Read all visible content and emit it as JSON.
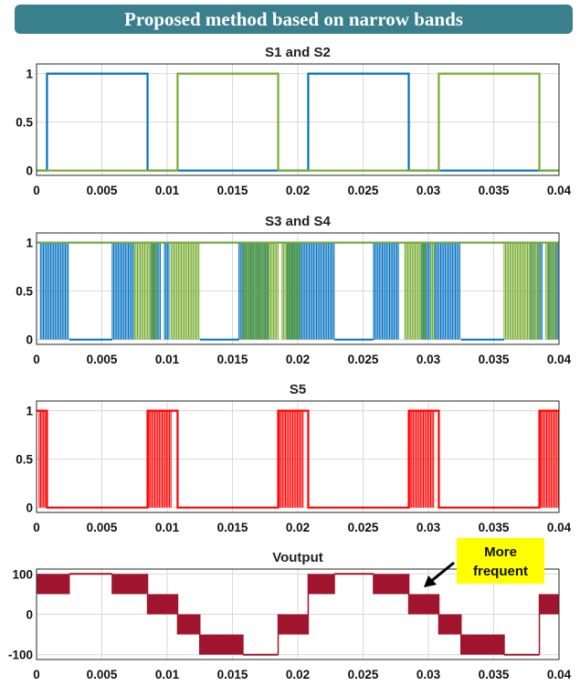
{
  "banner": {
    "title": "Proposed method based on narrow bands"
  },
  "annotation": {
    "line1": "More",
    "line2": "frequent",
    "box_color": "#ffff00",
    "arrow_color": "#000000"
  },
  "chart_data": [
    {
      "type": "line",
      "title": "S1 and S2",
      "xlim": [
        0,
        0.04
      ],
      "ylim": [
        -0.05,
        1.1
      ],
      "xticks": [
        "0",
        "0.005",
        "0.01",
        "0.015",
        "0.02",
        "0.025",
        "0.03",
        "0.035",
        "0.04"
      ],
      "yticks": [
        "0",
        "0.5",
        "1"
      ],
      "grid": true,
      "series": [
        {
          "color": "#0070c0",
          "x": [
            0,
            0.0008,
            0.0008,
            0.0085,
            0.0085,
            0.0208,
            0.0208,
            0.0285,
            0.0285,
            0.04
          ],
          "y": [
            0,
            0,
            1,
            1,
            0,
            0,
            1,
            1,
            0,
            0
          ]
        },
        {
          "color": "#77ac30",
          "x": [
            0,
            0.0108,
            0.0108,
            0.0185,
            0.0185,
            0.0308,
            0.0308,
            0.0385,
            0.0385,
            0.04
          ],
          "y": [
            0,
            0,
            1,
            1,
            0,
            0,
            1,
            1,
            0,
            0
          ]
        }
      ]
    },
    {
      "type": "line",
      "title": "S3 and S4",
      "xlim": [
        0,
        0.04
      ],
      "ylim": [
        -0.05,
        1.1
      ],
      "xticks": [
        "0",
        "0.005",
        "0.01",
        "0.015",
        "0.02",
        "0.025",
        "0.03",
        "0.035",
        "0.04"
      ],
      "yticks": [
        "0",
        "0.5",
        "1"
      ],
      "grid": true,
      "series": [
        {
          "color": "#0070c0",
          "x": [
            0,
            0.0008,
            0.0008,
            0.0085,
            0.0085,
            0.0208,
            0.0208,
            0.0285,
            0.0285,
            0.04
          ],
          "y": [
            1,
            1,
            1,
            1,
            1,
            1,
            1,
            1,
            1,
            1
          ],
          "switching_bands": [
            [
              0.0003,
              0.0025
            ],
            [
              0.0058,
              0.0075
            ],
            [
              0.0088,
              0.0095
            ],
            [
              0.0098,
              0.0102
            ],
            [
              0.0155,
              0.0178
            ],
            [
              0.0192,
              0.0228
            ],
            [
              0.0258,
              0.0278
            ],
            [
              0.0295,
              0.0302
            ],
            [
              0.0305,
              0.0325
            ],
            [
              0.0378,
              0.0388
            ],
            [
              0.0392,
              0.04
            ]
          ]
        },
        {
          "color": "#77ac30",
          "x": [
            0,
            0.04
          ],
          "y": [
            1,
            1
          ],
          "switching_bands": [
            [
              0.0075,
              0.0092
            ],
            [
              0.0103,
              0.0125
            ],
            [
              0.0158,
              0.0185
            ],
            [
              0.0188,
              0.0202
            ],
            [
              0.0282,
              0.0298
            ],
            [
              0.0302,
              0.0305
            ],
            [
              0.0358,
              0.0385
            ],
            [
              0.039,
              0.0398
            ]
          ]
        }
      ]
    },
    {
      "type": "line",
      "title": "S5",
      "xlim": [
        0,
        0.04
      ],
      "ylim": [
        -0.05,
        1.1
      ],
      "xticks": [
        "0",
        "0.005",
        "0.01",
        "0.015",
        "0.02",
        "0.025",
        "0.03",
        "0.035",
        "0.04"
      ],
      "yticks": [
        "0",
        "0.5",
        "1"
      ],
      "grid": true,
      "series": [
        {
          "color": "#ff0000",
          "x": [
            0,
            0.0008,
            0.0008,
            0.0085,
            0.0085,
            0.0108,
            0.0108,
            0.0185,
            0.0185,
            0.0208,
            0.0208,
            0.0285,
            0.0285,
            0.0308,
            0.0308,
            0.0385,
            0.0385,
            0.04
          ],
          "y": [
            1,
            1,
            0,
            0,
            1,
            1,
            0,
            0,
            1,
            1,
            0,
            0,
            1,
            1,
            0,
            0,
            1,
            1
          ],
          "switching_bands": [
            [
              0.0002,
              0.0008
            ],
            [
              0.0085,
              0.0103
            ],
            [
              0.0185,
              0.0205
            ],
            [
              0.0285,
              0.0305
            ],
            [
              0.0385,
              0.04
            ]
          ]
        }
      ]
    },
    {
      "type": "line",
      "title": "Voutput",
      "xlim": [
        0,
        0.04
      ],
      "ylim": [
        -112,
        112
      ],
      "xticks": [
        "0",
        "0.005",
        "0.01",
        "0.015",
        "0.02",
        "0.025",
        "0.03",
        "0.035",
        "0.04"
      ],
      "yticks": [
        "-100",
        "0",
        "100"
      ],
      "grid": true,
      "series": [
        {
          "color": "#a0152d",
          "steps": [
            [
              0,
              0.0002,
              50,
              100
            ],
            [
              0.0002,
              0.0008,
              50,
              100
            ],
            [
              0.0008,
              0.0025,
              50,
              100
            ],
            [
              0.0025,
              0.0058,
              100,
              100
            ],
            [
              0.0058,
              0.0085,
              50,
              100
            ],
            [
              0.0085,
              0.0108,
              0,
              50
            ],
            [
              0.0108,
              0.0125,
              -50,
              0
            ],
            [
              0.0125,
              0.0158,
              -100,
              -50
            ],
            [
              0.0158,
              0.0185,
              -100,
              -100
            ],
            [
              0.0185,
              0.0208,
              -50,
              0
            ],
            [
              0.0208,
              0.0228,
              50,
              100
            ],
            [
              0.0228,
              0.0258,
              100,
              100
            ],
            [
              0.0258,
              0.0285,
              50,
              100
            ],
            [
              0.0285,
              0.0308,
              0,
              50
            ],
            [
              0.0308,
              0.0325,
              -50,
              0
            ],
            [
              0.0325,
              0.0358,
              -100,
              -50
            ],
            [
              0.0358,
              0.0385,
              -100,
              -100
            ],
            [
              0.0385,
              0.04,
              0,
              50
            ]
          ]
        }
      ]
    }
  ]
}
